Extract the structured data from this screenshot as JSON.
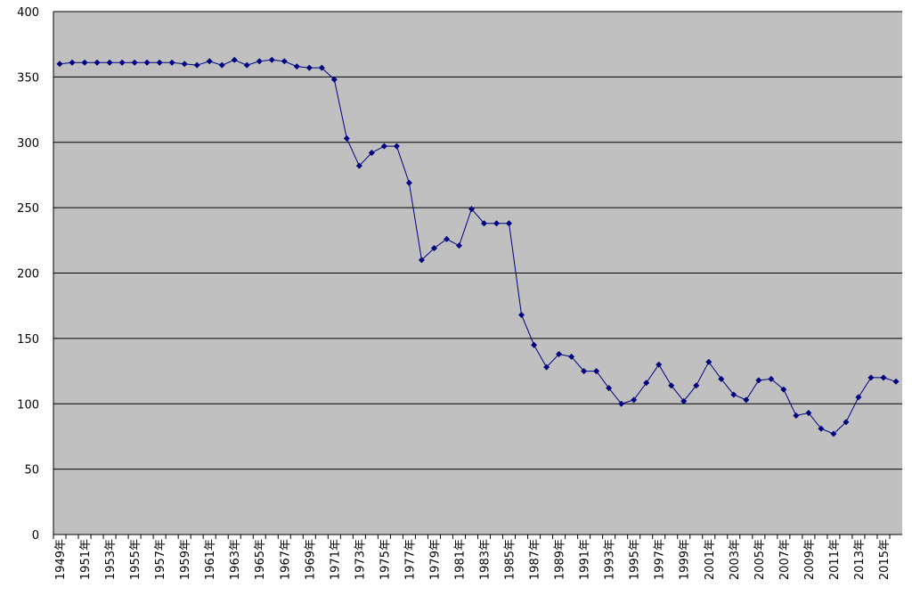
{
  "chart_data": {
    "type": "line",
    "categories": [
      "1949年",
      null,
      "1951年",
      null,
      "1953年",
      null,
      "1955年",
      null,
      "1957年",
      null,
      "1959年",
      null,
      "1961年",
      null,
      "1963年",
      null,
      "1965年",
      null,
      "1967年",
      null,
      "1969年",
      null,
      "1971年",
      null,
      "1973年",
      null,
      "1975年",
      null,
      "1977年",
      null,
      "1979年",
      null,
      "1981年",
      null,
      "1983年",
      null,
      "1985年",
      null,
      "1987年",
      null,
      "1989年",
      null,
      "1991年",
      null,
      "1993年",
      null,
      "1995年",
      null,
      "1997年",
      null,
      "1999年",
      null,
      "2001年",
      null,
      "2003年",
      null,
      "2005年",
      null,
      "2007年",
      null,
      "2009年",
      null,
      "2011年",
      null,
      "2013年",
      null,
      "2015年",
      null
    ],
    "values": [
      360,
      361,
      361,
      361,
      361,
      361,
      361,
      361,
      361,
      361,
      360,
      359,
      362,
      359,
      363,
      359,
      362,
      363,
      362,
      358,
      357,
      357,
      348,
      303,
      282,
      292,
      297,
      297,
      269,
      210,
      219,
      226,
      221,
      249,
      238,
      238,
      238,
      168,
      145,
      128,
      138,
      136,
      125,
      125,
      112,
      100,
      103,
      116,
      130,
      114,
      102,
      114,
      132,
      119,
      107,
      103,
      118,
      119,
      111,
      91,
      93,
      81,
      77,
      86,
      105,
      120,
      120,
      117
    ],
    "color": "#000080",
    "ylim": [
      0,
      400
    ],
    "yticks": [
      0,
      50,
      100,
      150,
      200,
      250,
      300,
      350,
      400
    ],
    "grid": true
  }
}
